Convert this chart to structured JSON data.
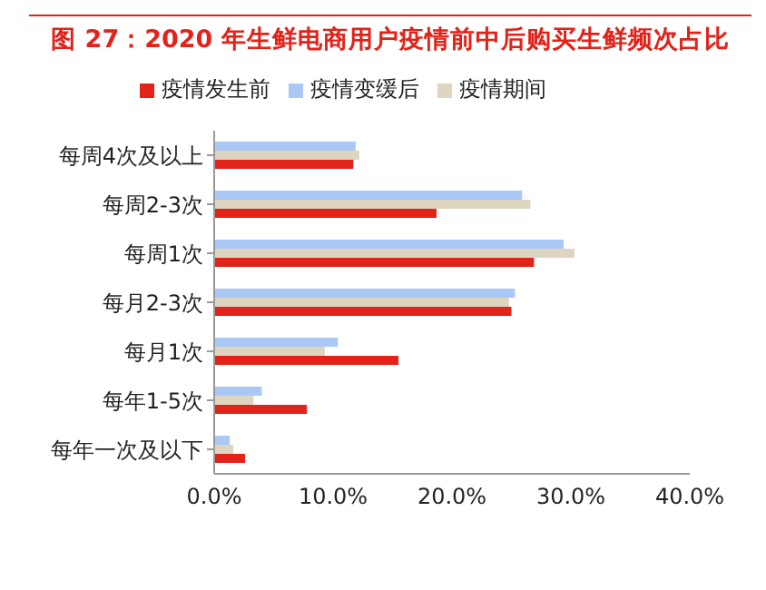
{
  "chart_data": {
    "type": "bar",
    "orientation": "horizontal",
    "title": "图 27：2020 年生鲜电商用户疫情前中后购买生鲜频次占比",
    "categories": [
      "每周4次及以上",
      "每周2-3次",
      "每周1次",
      "每月2-3次",
      "每月1次",
      "每年1-5次",
      "每年一次及以下"
    ],
    "series": [
      {
        "name": "疫情变缓后",
        "color": "#a9c8f5",
        "values": [
          11.9,
          25.9,
          29.4,
          25.3,
          10.4,
          4.0,
          1.3
        ]
      },
      {
        "name": "疫情期间",
        "color": "#ddd5c0",
        "values": [
          12.2,
          26.6,
          30.3,
          24.8,
          9.3,
          3.3,
          1.6
        ]
      },
      {
        "name": "疫情发生前",
        "color": "#e2231a",
        "values": [
          11.7,
          18.7,
          26.9,
          25.0,
          15.5,
          7.8,
          2.6
        ]
      }
    ],
    "xlim": [
      0,
      40
    ],
    "xticks": [
      {
        "value": 0,
        "label": "0.0%"
      },
      {
        "value": 10,
        "label": "10.0%"
      },
      {
        "value": 20,
        "label": "20.0%"
      },
      {
        "value": 30,
        "label": "30.0%"
      },
      {
        "value": 40,
        "label": "40.0%"
      }
    ],
    "grid": false,
    "legend": "top"
  }
}
